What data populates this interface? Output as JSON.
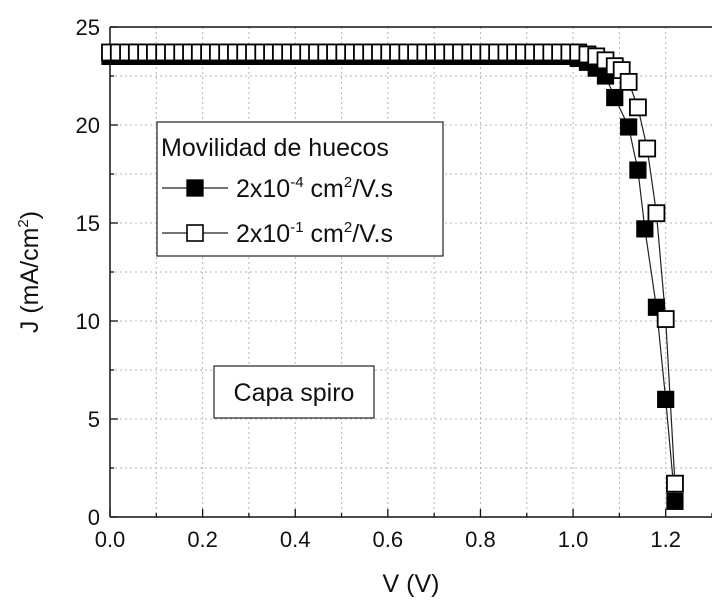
{
  "chart_data": {
    "type": "line",
    "xlabel": "V (V)",
    "ylabel_main": "J (mA/cm",
    "ylabel_sup": "2",
    "ylabel_tail": ")",
    "xlim": [
      0.0,
      1.3
    ],
    "ylim": [
      0,
      25
    ],
    "x_ticks": [
      0.0,
      0.2,
      0.4,
      0.6,
      0.8,
      1.0,
      1.2
    ],
    "x_tick_labels": [
      "0.0",
      "0.2",
      "0.4",
      "0.6",
      "0.8",
      "1.0",
      "1.2"
    ],
    "y_ticks": [
      0,
      5,
      10,
      15,
      20,
      25
    ],
    "y_tick_labels": [
      "0",
      "5",
      "10",
      "15",
      "20",
      "25"
    ],
    "grid": true,
    "legend": {
      "title": "Movilidad de huecos",
      "placement": "upper-left",
      "entries": [
        {
          "prefix": "2x10",
          "exp": "-4",
          "mid": " cm",
          "exp2": "2",
          "suffix": "/V.s",
          "marker": "filled-square"
        },
        {
          "prefix": "2x10",
          "exp": "-1",
          "mid": " cm",
          "exp2": "2",
          "suffix": "/V.s",
          "marker": "open-square"
        }
      ]
    },
    "annotation": "Capa spiro",
    "series": [
      {
        "name": "2x10-4 cm2/V.s",
        "marker": "filled",
        "x": [
          0.0,
          0.019,
          0.039,
          0.058,
          0.078,
          0.097,
          0.117,
          0.136,
          0.156,
          0.175,
          0.194,
          0.214,
          0.233,
          0.253,
          0.272,
          0.292,
          0.311,
          0.331,
          0.35,
          0.369,
          0.389,
          0.408,
          0.428,
          0.447,
          0.467,
          0.486,
          0.506,
          0.525,
          0.544,
          0.564,
          0.583,
          0.603,
          0.622,
          0.642,
          0.661,
          0.681,
          0.7,
          0.719,
          0.739,
          0.758,
          0.778,
          0.797,
          0.817,
          0.836,
          0.856,
          0.875,
          0.894,
          0.914,
          0.933,
          0.953,
          0.972,
          0.992,
          1.011,
          1.031,
          1.05,
          1.07,
          1.09,
          1.12,
          1.14,
          1.155,
          1.18,
          1.2,
          1.22
        ],
        "y": [
          23.5,
          23.5,
          23.5,
          23.5,
          23.5,
          23.5,
          23.5,
          23.5,
          23.5,
          23.5,
          23.5,
          23.5,
          23.5,
          23.5,
          23.5,
          23.5,
          23.5,
          23.5,
          23.5,
          23.5,
          23.5,
          23.5,
          23.5,
          23.5,
          23.5,
          23.5,
          23.5,
          23.5,
          23.5,
          23.5,
          23.5,
          23.5,
          23.5,
          23.5,
          23.5,
          23.5,
          23.5,
          23.5,
          23.5,
          23.5,
          23.5,
          23.5,
          23.5,
          23.5,
          23.5,
          23.5,
          23.5,
          23.5,
          23.5,
          23.5,
          23.5,
          23.5,
          23.4,
          23.2,
          22.9,
          22.5,
          21.4,
          19.9,
          17.7,
          14.7,
          10.7,
          6.0,
          0.8
        ]
      },
      {
        "name": "2x10-1 cm2/V.s",
        "marker": "open",
        "x": [
          0.0,
          0.019,
          0.039,
          0.058,
          0.078,
          0.097,
          0.117,
          0.136,
          0.156,
          0.175,
          0.194,
          0.214,
          0.233,
          0.253,
          0.272,
          0.292,
          0.311,
          0.331,
          0.35,
          0.369,
          0.389,
          0.408,
          0.428,
          0.447,
          0.467,
          0.486,
          0.506,
          0.525,
          0.544,
          0.564,
          0.583,
          0.603,
          0.622,
          0.642,
          0.661,
          0.681,
          0.7,
          0.719,
          0.739,
          0.758,
          0.778,
          0.797,
          0.817,
          0.836,
          0.856,
          0.875,
          0.894,
          0.914,
          0.933,
          0.953,
          0.972,
          0.992,
          1.011,
          1.031,
          1.05,
          1.07,
          1.09,
          1.105,
          1.12,
          1.14,
          1.16,
          1.18,
          1.2,
          1.22
        ],
        "y": [
          23.7,
          23.7,
          23.7,
          23.7,
          23.7,
          23.7,
          23.7,
          23.7,
          23.7,
          23.7,
          23.7,
          23.7,
          23.7,
          23.7,
          23.7,
          23.7,
          23.7,
          23.7,
          23.7,
          23.7,
          23.7,
          23.7,
          23.7,
          23.7,
          23.7,
          23.7,
          23.7,
          23.7,
          23.7,
          23.7,
          23.7,
          23.7,
          23.7,
          23.7,
          23.7,
          23.7,
          23.7,
          23.7,
          23.7,
          23.7,
          23.7,
          23.7,
          23.7,
          23.7,
          23.7,
          23.7,
          23.7,
          23.7,
          23.7,
          23.7,
          23.7,
          23.7,
          23.7,
          23.6,
          23.5,
          23.3,
          23.0,
          22.8,
          22.2,
          20.9,
          18.8,
          15.5,
          10.1,
          1.7
        ]
      }
    ]
  }
}
